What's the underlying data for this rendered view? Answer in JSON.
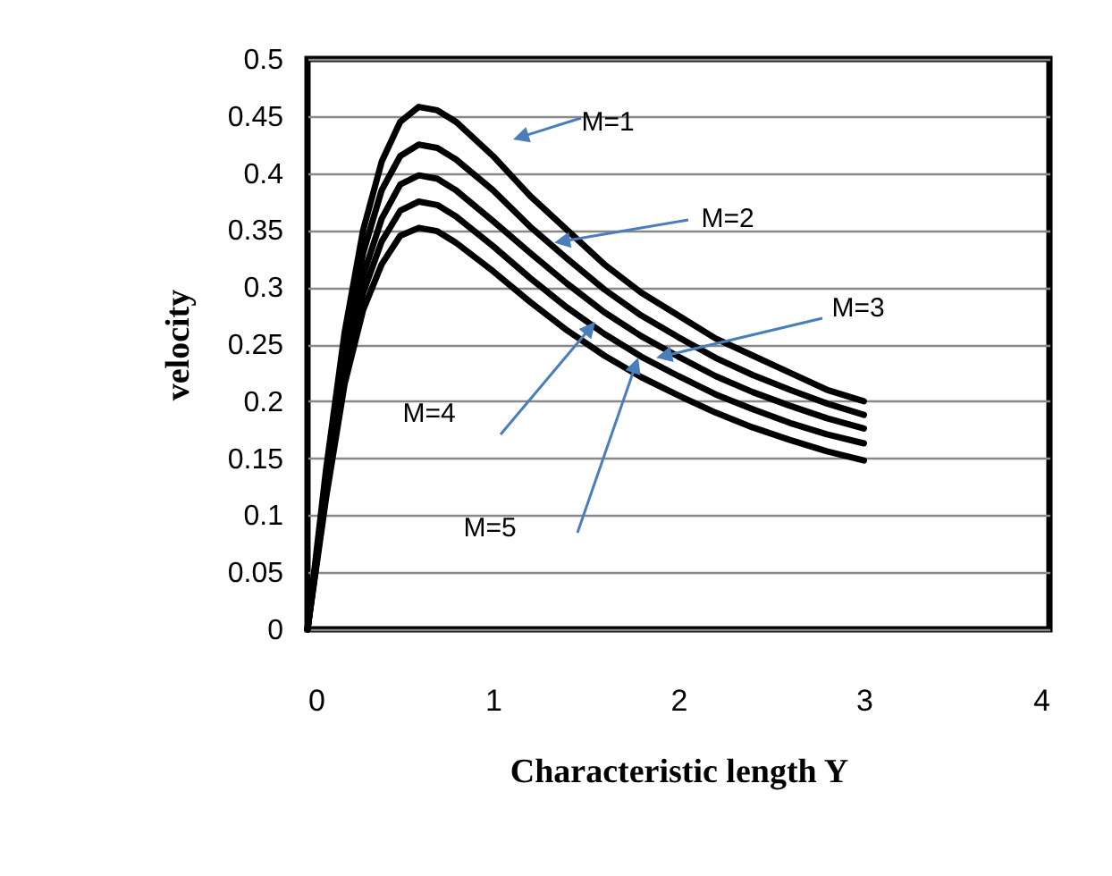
{
  "chart_data": {
    "type": "line",
    "xlabel": "Characteristic length Y",
    "ylabel": "velocity",
    "xlim": [
      0,
      4
    ],
    "xticks": [
      0,
      1,
      2,
      3,
      4
    ],
    "ylim": [
      0,
      0.5
    ],
    "yticks": [
      0,
      0.05,
      0.1,
      0.15,
      0.2,
      0.25,
      0.3,
      0.35,
      0.4,
      0.45,
      0.5
    ],
    "grid": "y",
    "legend": false,
    "marker": "none",
    "line_style": "solid",
    "x": [
      0,
      0.1,
      0.2,
      0.3,
      0.4,
      0.5,
      0.6,
      0.7,
      0.8,
      1.0,
      1.2,
      1.4,
      1.6,
      1.8,
      2.0,
      2.2,
      2.4,
      2.6,
      2.8,
      3.0
    ],
    "series": [
      {
        "color": "#000000",
        "values": [
          0,
          0.14,
          0.26,
          0.35,
          0.41,
          0.445,
          0.458,
          0.455,
          0.445,
          0.415,
          0.38,
          0.35,
          0.32,
          0.295,
          0.275,
          0.255,
          0.24,
          0.225,
          0.21,
          0.2
        ]
      },
      {
        "color": "#000000",
        "values": [
          0,
          0.13,
          0.245,
          0.33,
          0.385,
          0.415,
          0.425,
          0.422,
          0.412,
          0.385,
          0.353,
          0.325,
          0.298,
          0.275,
          0.256,
          0.238,
          0.223,
          0.21,
          0.198,
          0.188
        ]
      },
      {
        "color": "#000000",
        "values": [
          0,
          0.125,
          0.235,
          0.31,
          0.36,
          0.39,
          0.398,
          0.395,
          0.385,
          0.358,
          0.33,
          0.303,
          0.278,
          0.257,
          0.239,
          0.222,
          0.208,
          0.196,
          0.185,
          0.176
        ]
      },
      {
        "color": "#000000",
        "values": [
          0,
          0.12,
          0.225,
          0.295,
          0.34,
          0.367,
          0.375,
          0.372,
          0.362,
          0.336,
          0.308,
          0.282,
          0.259,
          0.239,
          0.222,
          0.206,
          0.193,
          0.181,
          0.171,
          0.163
        ]
      },
      {
        "color": "#000000",
        "values": [
          0,
          0.115,
          0.215,
          0.28,
          0.32,
          0.345,
          0.352,
          0.349,
          0.339,
          0.314,
          0.287,
          0.262,
          0.24,
          0.221,
          0.205,
          0.19,
          0.177,
          0.166,
          0.156,
          0.148
        ]
      }
    ],
    "annotations": [
      "M=1",
      {
        "text": "M=2",
        "x": 1.33,
        "y": 0.339
      },
      {
        "text": "M=3",
        "x": 1.88,
        "y": 0.238
      },
      "M=4",
      "M=5"
    ]
  }
}
